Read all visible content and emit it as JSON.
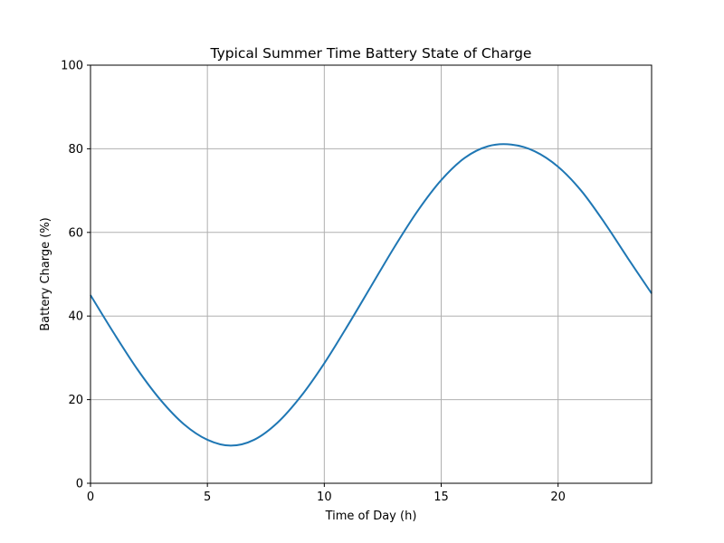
{
  "chart_data": {
    "type": "line",
    "title": "Typical Summer Time Battery State of Charge",
    "xlabel": "Time of Day (h)",
    "ylabel": "Battery Charge (%)",
    "xlim": [
      0,
      24
    ],
    "ylim": [
      0,
      100
    ],
    "xticks": [
      0,
      5,
      10,
      15,
      20
    ],
    "yticks": [
      0,
      20,
      40,
      60,
      80,
      100
    ],
    "grid": true,
    "series": [
      {
        "color": "#1f77b4",
        "x": [
          0,
          1,
          2,
          3,
          4,
          5,
          6,
          7,
          8,
          9,
          10,
          11,
          12,
          13,
          14,
          15,
          16,
          17,
          18,
          19,
          20,
          21,
          22,
          23,
          24
        ],
        "y": [
          45,
          35.9,
          27.3,
          19.9,
          14.1,
          10.4,
          9,
          10.4,
          14.5,
          20.8,
          28.7,
          37.7,
          47.1,
          56.5,
          65.2,
          72.5,
          77.8,
          80.6,
          81,
          79.4,
          75.7,
          69.9,
          62.2,
          53.7,
          45.4
        ]
      }
    ]
  }
}
